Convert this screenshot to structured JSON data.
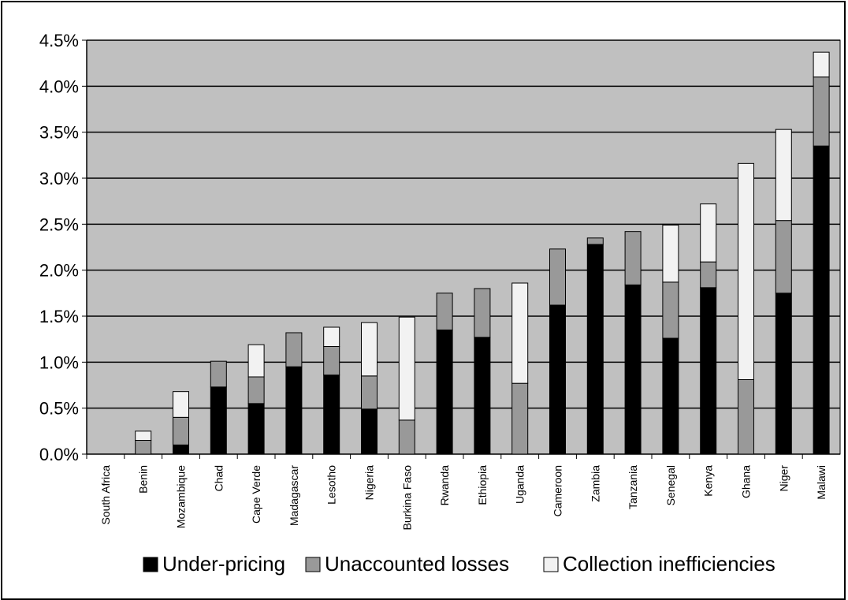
{
  "chart_data": {
    "type": "bar",
    "stacked": true,
    "categories": [
      "South Africa",
      "Benin",
      "Mozambique",
      "Chad",
      "Cape Verde",
      "Madagascar",
      "Lesotho",
      "Nigeria",
      "Burkina Faso",
      "Rwanda",
      "Ethiopia",
      "Uganda",
      "Cameroon",
      "Zambia",
      "Tanzania",
      "Senegal",
      "Kenya",
      "Ghana",
      "Niger",
      "Malawi"
    ],
    "series": [
      {
        "name": "Under-pricing",
        "color": "#000000",
        "values": [
          0.0,
          0.0,
          0.1,
          0.73,
          0.55,
          0.95,
          0.86,
          0.49,
          0.0,
          1.35,
          1.27,
          0.0,
          1.62,
          2.28,
          1.84,
          1.26,
          1.81,
          0.0,
          1.75,
          3.35
        ]
      },
      {
        "name": "Unaccounted losses",
        "color": "#999999",
        "values": [
          0.0,
          0.15,
          0.3,
          0.28,
          0.29,
          0.37,
          0.31,
          0.36,
          0.37,
          0.4,
          0.53,
          0.77,
          0.61,
          0.07,
          0.58,
          0.61,
          0.28,
          0.81,
          0.79,
          0.75
        ]
      },
      {
        "name": "Collection inefficiencies",
        "color": "#f2f2f2",
        "values": [
          0.0,
          0.1,
          0.28,
          0.0,
          0.35,
          0.0,
          0.21,
          0.58,
          1.12,
          0.0,
          0.0,
          1.09,
          0.0,
          0.0,
          0.0,
          0.62,
          0.63,
          2.35,
          0.99,
          0.27
        ]
      }
    ],
    "yticks": [
      "0.0%",
      "0.5%",
      "1.0%",
      "1.5%",
      "2.0%",
      "2.5%",
      "3.0%",
      "3.5%",
      "4.0%",
      "4.5%"
    ],
    "ylim": [
      0,
      4.5
    ],
    "grid": true,
    "plot_background": "#c0c0c0",
    "legend_position": "bottom"
  }
}
